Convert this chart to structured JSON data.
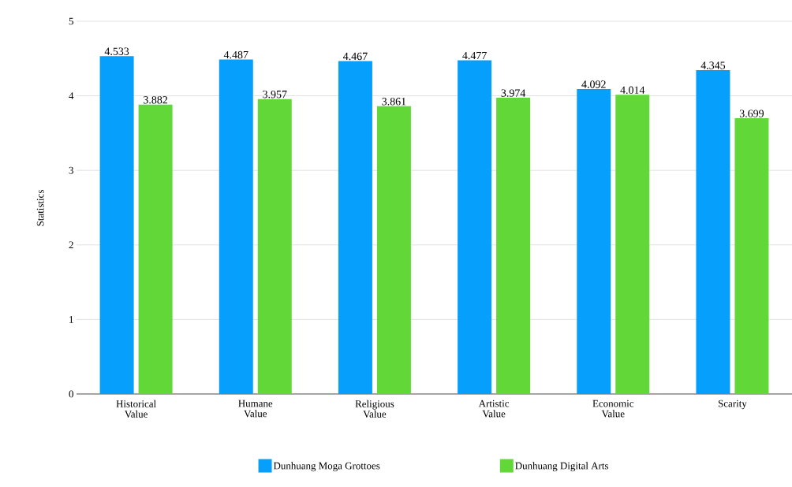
{
  "chart_data": {
    "type": "bar",
    "ylabel": "Statistics",
    "categories": [
      "Historical Value",
      "Humane Value",
      "Religious Value",
      "Artistic Value",
      "Economic Value",
      "Scarity"
    ],
    "series": [
      {
        "name": "Dunhuang Moga Grottoes",
        "color": "#069ffb",
        "values": [
          4.533,
          4.487,
          4.467,
          4.477,
          4.092,
          4.345
        ]
      },
      {
        "name": "Dunhuang Digital Arts",
        "color": "#62d838",
        "values": [
          3.882,
          3.957,
          3.861,
          3.974,
          4.014,
          3.699
        ]
      }
    ],
    "ylim": [
      0,
      5
    ],
    "yticks": [
      0,
      1,
      2,
      3,
      4,
      5
    ],
    "grid": "y",
    "legend": "bottom",
    "data_labels": true
  }
}
